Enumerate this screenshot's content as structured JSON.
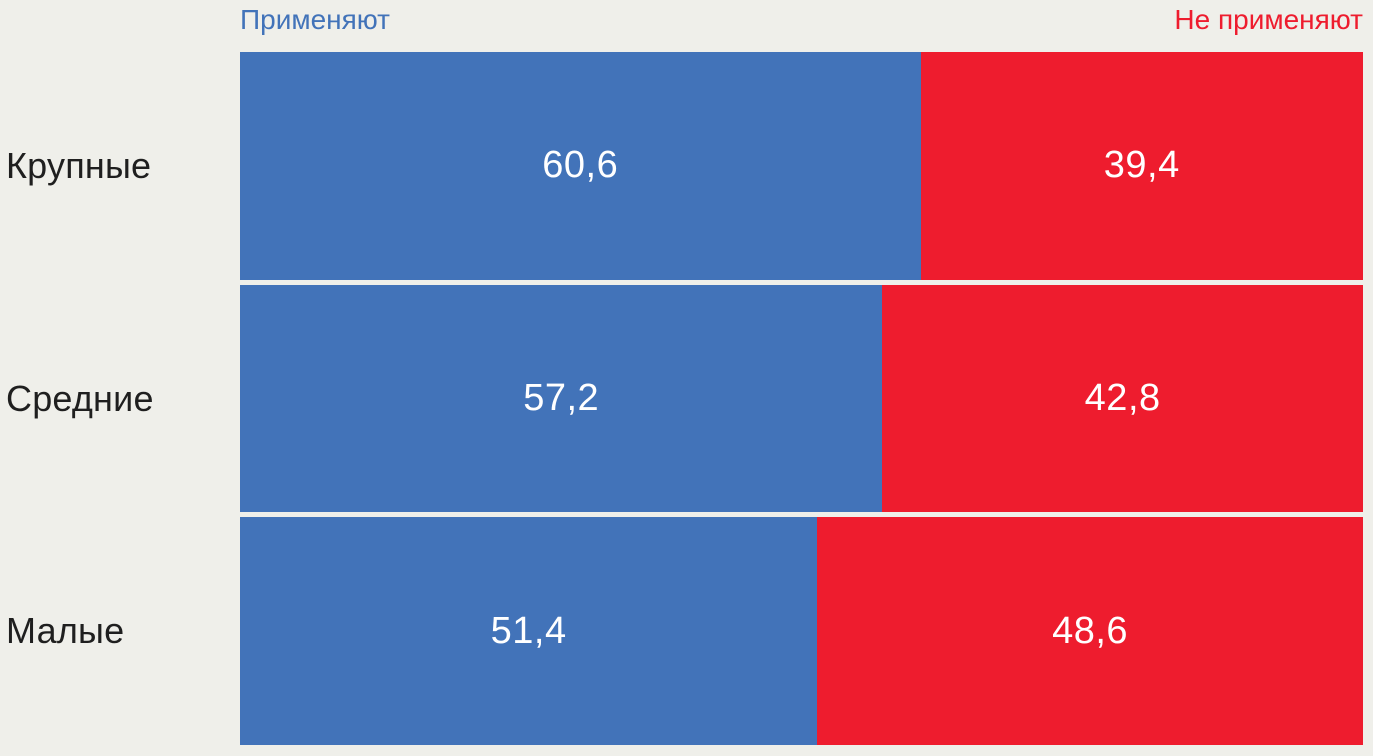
{
  "colors": {
    "background": "#EFEFEA",
    "apply_blue": "#4273B9",
    "not_apply_red": "#EE1C2E",
    "category_text": "#1F1F1F",
    "value_text": "#FFFFFF"
  },
  "legend": {
    "left_label": "Применяют",
    "right_label": "Не применяют"
  },
  "chart_data": {
    "type": "bar",
    "orientation": "horizontal",
    "stacked": true,
    "title": "",
    "categories": [
      "Крупные",
      "Средние",
      "Малые"
    ],
    "series": [
      {
        "name": "Применяют",
        "color": "#4273B9",
        "values": [
          60.6,
          57.2,
          51.4
        ],
        "labels": [
          "60,6",
          "57,2",
          "51,4"
        ]
      },
      {
        "name": "Не применяют",
        "color": "#EE1C2E",
        "values": [
          39.4,
          42.8,
          48.6
        ],
        "labels": [
          "39,4",
          "42,8",
          "48,6"
        ]
      }
    ],
    "xlim": [
      0,
      100
    ],
    "value_label_position": "inside-center",
    "legend_position": "top",
    "grid": false
  }
}
